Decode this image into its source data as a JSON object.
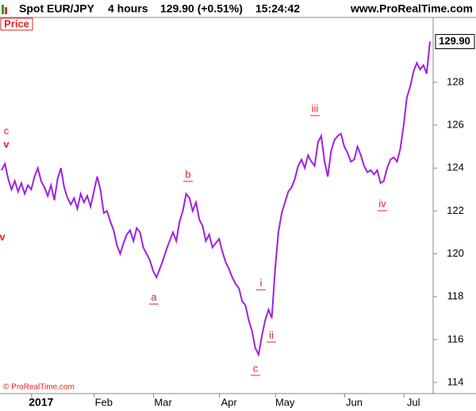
{
  "chart_data": {
    "type": "line",
    "header": {
      "symbol": "Spot EUR/JPY",
      "period": "4 hours",
      "quote": "129.90 (+0.51%)",
      "time": "15:24:42",
      "site": "www.ProRealTime.com"
    },
    "panel_label": "Price",
    "copyright": "© ProRealTime.com",
    "last_price_label": "129.90",
    "annotations": [
      "c",
      "v",
      "v",
      "b",
      "a",
      "iii",
      "i",
      "ii",
      "c",
      "iv"
    ],
    "annotation_color": "#e02020",
    "categories": [
      null,
      null,
      null,
      null,
      null,
      null,
      null,
      null,
      null,
      null,
      null,
      null,
      "2017",
      null,
      null,
      null,
      null,
      null,
      null,
      null,
      null,
      null,
      null,
      null,
      null,
      null,
      null,
      null,
      null,
      null,
      null,
      "Feb",
      null,
      null,
      null,
      null,
      null,
      null,
      null,
      null,
      null,
      null,
      null,
      null,
      null,
      null,
      null,
      null,
      null,
      "Mar",
      null,
      null,
      null,
      null,
      null,
      null,
      null,
      null,
      null,
      null,
      null,
      null,
      null,
      null,
      null,
      null,
      null,
      null,
      null,
      "Apr",
      null,
      null,
      null,
      null,
      null,
      null,
      null,
      null,
      null,
      null,
      null,
      null,
      null,
      null,
      null,
      null,
      "May",
      null,
      null,
      null,
      null,
      null,
      null,
      null,
      null,
      null,
      null,
      null,
      null,
      null,
      null,
      null,
      null,
      null,
      null,
      null,
      null,
      "Jun",
      null,
      null,
      null,
      null,
      null,
      null,
      null,
      null,
      null,
      null,
      null,
      null,
      null,
      null,
      null,
      null,
      null,
      "Jul",
      null,
      null,
      null,
      null,
      null
    ],
    "series": [
      {
        "name": "Spot EUR/JPY",
        "color": "#a020e0",
        "values": [
          123.9,
          124.2,
          123.5,
          123.0,
          123.4,
          122.9,
          123.3,
          122.8,
          123.2,
          123.0,
          123.6,
          124.0,
          123.4,
          123.1,
          122.7,
          123.2,
          122.5,
          123.5,
          124.0,
          123.1,
          122.6,
          122.3,
          122.6,
          122.1,
          122.8,
          122.4,
          122.7,
          122.2,
          122.9,
          123.6,
          123.0,
          121.9,
          122.0,
          121.5,
          121.1,
          120.4,
          120.0,
          120.5,
          120.9,
          121.1,
          120.6,
          121.2,
          121.0,
          120.3,
          120.0,
          119.7,
          119.2,
          118.9,
          119.3,
          119.7,
          120.2,
          120.6,
          121.0,
          120.6,
          121.5,
          122.0,
          122.8,
          122.6,
          122.0,
          122.4,
          121.6,
          121.3,
          120.6,
          120.9,
          120.3,
          120.5,
          120.7,
          120.1,
          119.6,
          119.3,
          118.9,
          118.6,
          118.4,
          117.8,
          117.6,
          116.9,
          116.4,
          115.6,
          115.3,
          116.2,
          116.9,
          117.4,
          117.0,
          119.3,
          121.0,
          121.9,
          122.4,
          122.9,
          123.1,
          123.5,
          124.1,
          124.4,
          124.0,
          124.6,
          124.3,
          124.1,
          125.2,
          125.5,
          124.3,
          123.6,
          124.8,
          125.3,
          125.5,
          125.6,
          125.0,
          124.7,
          124.3,
          124.4,
          125.0,
          124.6,
          124.1,
          123.8,
          123.9,
          123.7,
          123.9,
          123.3,
          123.4,
          124.0,
          124.4,
          124.5,
          124.3,
          124.9,
          126.0,
          127.3,
          127.8,
          128.5,
          128.9,
          128.6,
          128.8,
          128.4,
          129.9
        ]
      }
    ],
    "ylim": [
      113.5,
      130.9
    ],
    "yticks": [
      114,
      116,
      118,
      120,
      122,
      124,
      126,
      128
    ],
    "axis_side": "right"
  }
}
